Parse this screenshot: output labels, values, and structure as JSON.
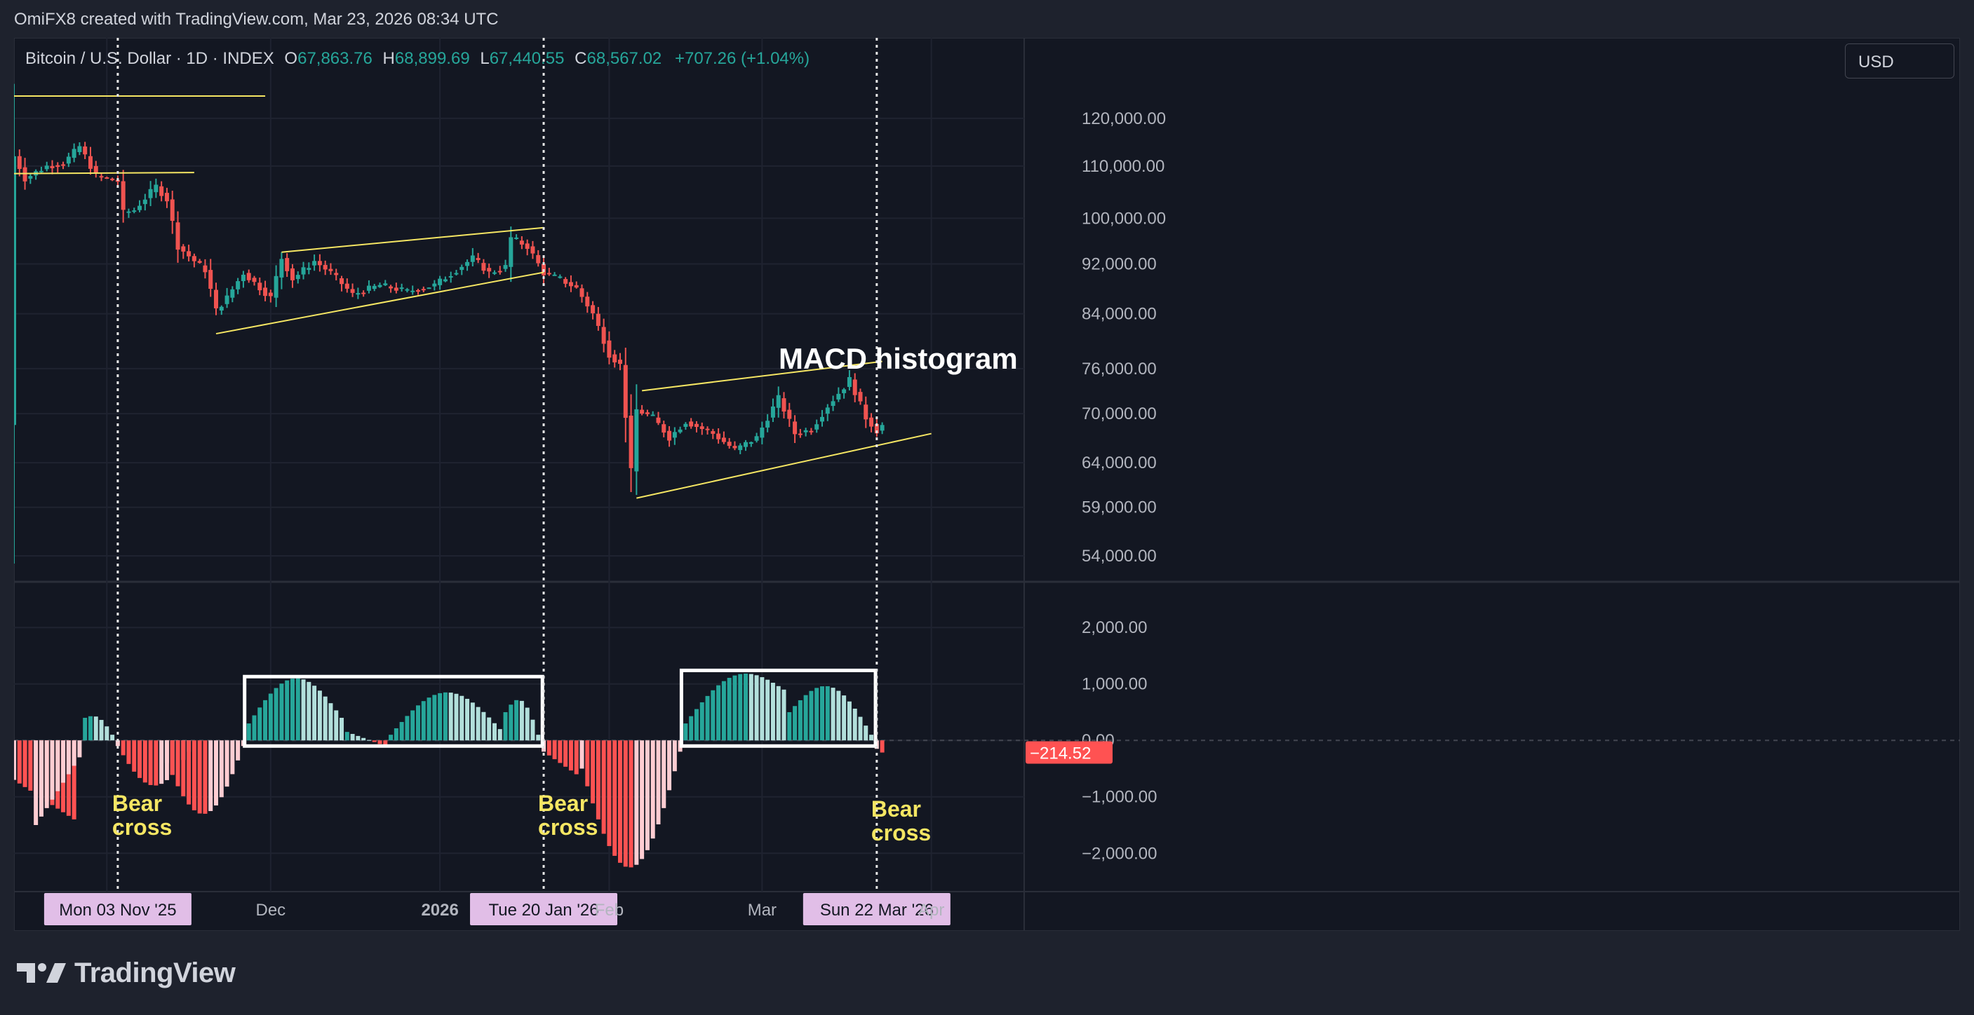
{
  "header": {
    "attribution": "OmiFX8 created with TradingView.com, Mar 23, 2026 08:34 UTC"
  },
  "legend": {
    "symbol": "Bitcoin / U.S. Dollar · 1D · INDEX",
    "open_label": "O",
    "open": "67,863.76",
    "high_label": "H",
    "high": "68,899.69",
    "low_label": "L",
    "low": "67,440.55",
    "close_label": "C",
    "close": "68,567.02",
    "change": "+707.26 (+1.04%)"
  },
  "currency_button": "USD",
  "brand": {
    "name": "TradingView"
  },
  "colors": {
    "background": "#131722",
    "up_candle": "#26a69a",
    "down_candle": "#ef5350",
    "hist_up_strong": "#26a69a",
    "hist_up_weak": "#b2dfdb",
    "hist_down_strong": "#ff5252",
    "hist_down_weak": "#ffcdd2",
    "trendline": "#f5e663",
    "annotation_text": "#f5e663",
    "annotation_box": "#ffffff",
    "crosshair_label": "#e1bee7"
  },
  "chart_data": [
    {
      "type": "candlestick",
      "title": "Bitcoin / U.S. Dollar · 1D · INDEX",
      "price_axis_ticks": [
        "120,000.00",
        "110,000.00",
        "100,000.00",
        "92,000.00",
        "84,000.00",
        "76,000.00",
        "70,000.00",
        "64,000.00",
        "59,000.00",
        "54,000.00"
      ],
      "price_scale": "log",
      "ylim": [
        51500,
        139000
      ],
      "time_axis_labels": [
        "Mon 03 Nov '25",
        "Dec",
        "2026",
        "Tue 20 Jan '26",
        "Feb",
        "Mar",
        "Sun 22 Mar '26",
        "Apr"
      ],
      "x_range": [
        "2025-10-15",
        "2026-04-18"
      ],
      "close_path": [
        [
          "2025-10-15",
          112000
        ],
        [
          "2025-10-17",
          107500
        ],
        [
          "2025-10-21",
          110000
        ],
        [
          "2025-10-24",
          110500
        ],
        [
          "2025-10-27",
          114000
        ],
        [
          "2025-10-30",
          108000
        ],
        [
          "2025-11-03",
          107000
        ],
        [
          "2025-11-04",
          101000
        ],
        [
          "2025-11-06",
          101500
        ],
        [
          "2025-11-10",
          106000
        ],
        [
          "2025-11-12",
          103500
        ],
        [
          "2025-11-14",
          95000
        ],
        [
          "2025-11-17",
          92500
        ],
        [
          "2025-11-19",
          91000
        ],
        [
          "2025-11-21",
          84500
        ],
        [
          "2025-11-23",
          86500
        ],
        [
          "2025-11-26",
          90500
        ],
        [
          "2025-12-01",
          86500
        ],
        [
          "2025-12-03",
          93000
        ],
        [
          "2025-12-05",
          89500
        ],
        [
          "2025-12-09",
          92500
        ],
        [
          "2025-12-12",
          90500
        ],
        [
          "2025-12-16",
          87000
        ],
        [
          "2025-12-21",
          88500
        ],
        [
          "2025-12-26",
          87500
        ],
        [
          "2025-12-31",
          88500
        ],
        [
          "2026-01-04",
          91000
        ],
        [
          "2026-01-07",
          93000
        ],
        [
          "2026-01-10",
          90500
        ],
        [
          "2026-01-13",
          91500
        ],
        [
          "2026-01-14",
          96500
        ],
        [
          "2026-01-17",
          95000
        ],
        [
          "2026-01-20",
          90500
        ],
        [
          "2026-01-23",
          89500
        ],
        [
          "2026-01-26",
          88000
        ],
        [
          "2026-01-29",
          84000
        ],
        [
          "2026-02-01",
          78000
        ],
        [
          "2026-02-03",
          76500
        ],
        [
          "2026-02-05",
          63000
        ],
        [
          "2026-02-06",
          70500
        ],
        [
          "2026-02-09",
          69500
        ],
        [
          "2026-02-12",
          67000
        ],
        [
          "2026-02-15",
          69000
        ],
        [
          "2026-02-20",
          67500
        ],
        [
          "2026-02-24",
          65500
        ],
        [
          "2026-02-28",
          67000
        ],
        [
          "2026-03-04",
          72000
        ],
        [
          "2026-03-07",
          67500
        ],
        [
          "2026-03-10",
          68000
        ],
        [
          "2026-03-13",
          71000
        ],
        [
          "2026-03-16",
          73500
        ],
        [
          "2026-03-17",
          74500
        ],
        [
          "2026-03-20",
          69500
        ],
        [
          "2026-03-22",
          67863
        ],
        [
          "2026-03-23",
          68567
        ]
      ],
      "last_candle": {
        "open": 67863.76,
        "high": 68899.69,
        "low": 67440.55,
        "close": 68567.02,
        "change": 707.26,
        "change_pct": 1.04
      },
      "trendlines": [
        {
          "from": [
            "2025-10-14",
            125000
          ],
          "to": [
            "2025-11-30",
            125000
          ]
        },
        {
          "from": [
            "2025-10-14",
            108500
          ],
          "to": [
            "2025-11-17",
            108700
          ]
        },
        {
          "from": [
            "2025-11-21",
            81000
          ],
          "to": [
            "2026-01-20",
            90600
          ]
        },
        {
          "from": [
            "2025-12-03",
            94000
          ],
          "to": [
            "2026-01-20",
            98300
          ]
        },
        {
          "from": [
            "2026-02-06",
            60000
          ],
          "to": [
            "2026-04-01",
            67500
          ]
        },
        {
          "from": [
            "2026-02-07",
            73000
          ],
          "to": [
            "2026-03-23",
            77000
          ]
        }
      ],
      "event_lines": [
        "2025-11-03",
        "2026-01-20",
        "2026-03-22"
      ]
    },
    {
      "type": "bar",
      "title": "MACD histogram",
      "axis_ticks": [
        "2,000.00",
        "1,000.00",
        "0.00",
        "−1,000.00",
        "−2,000.00"
      ],
      "ylim": [
        -2680,
        2810
      ],
      "last_value": -214.52,
      "last_value_label": "−214.52",
      "segments": [
        {
          "start": "2025-10-15",
          "end": "2025-10-26",
          "from": -700,
          "to": -1400,
          "shape": "ramp"
        },
        {
          "start": "2025-10-19",
          "end": "2025-10-27",
          "from": -1500,
          "to": -300,
          "shape": "ramp"
        },
        {
          "start": "2025-10-28",
          "end": "2025-11-02",
          "from": 400,
          "to": 100,
          "shape": "arc"
        },
        {
          "start": "2025-11-03",
          "end": "2025-11-16",
          "from": -100,
          "to": -200,
          "peak": -800,
          "shape": "arc"
        },
        {
          "start": "2025-11-12",
          "end": "2025-11-26",
          "from": -400,
          "to": -100,
          "peak": -1300,
          "shape": "arc"
        },
        {
          "start": "2025-11-27",
          "end": "2025-12-14",
          "from": 300,
          "to": 400,
          "peak": 1100,
          "shape": "arc"
        },
        {
          "start": "2025-12-15",
          "end": "2025-12-22",
          "from": 150,
          "to": -100,
          "shape": "ramp"
        },
        {
          "start": "2025-12-23",
          "end": "2026-01-12",
          "from": 100,
          "to": 200,
          "peak": 850,
          "shape": "arc"
        },
        {
          "start": "2026-01-13",
          "end": "2026-01-19",
          "from": 500,
          "to": 100,
          "peak": 700,
          "shape": "arc"
        },
        {
          "start": "2026-01-20",
          "end": "2026-01-26",
          "from": -200,
          "to": -600,
          "shape": "ramp"
        },
        {
          "start": "2026-01-27",
          "end": "2026-02-14",
          "from": -500,
          "to": -200,
          "peak": -2250,
          "shape": "arc"
        },
        {
          "start": "2026-02-15",
          "end": "2026-03-05",
          "from": 300,
          "to": 900,
          "peak": 1150,
          "shape": "arc"
        },
        {
          "start": "2026-03-06",
          "end": "2026-03-21",
          "from": 500,
          "to": 100,
          "peak": 950,
          "shape": "arc"
        },
        {
          "start": "2026-03-22",
          "end": "2026-03-23",
          "from": -150,
          "to": -215,
          "shape": "ramp"
        }
      ],
      "boxes": [
        [
          "2025-11-27",
          "2026-01-19"
        ],
        [
          "2026-02-15",
          "2026-03-21"
        ]
      ],
      "annotations": [
        {
          "text": [
            "Bear",
            "cross"
          ],
          "x": "2025-11-03",
          "y": -1250
        },
        {
          "text": [
            "Bear",
            "cross"
          ],
          "x": "2026-01-20",
          "y": -1250
        },
        {
          "text": [
            "Bear",
            "cross"
          ],
          "x": "2026-03-22",
          "y": -1350
        }
      ]
    }
  ]
}
